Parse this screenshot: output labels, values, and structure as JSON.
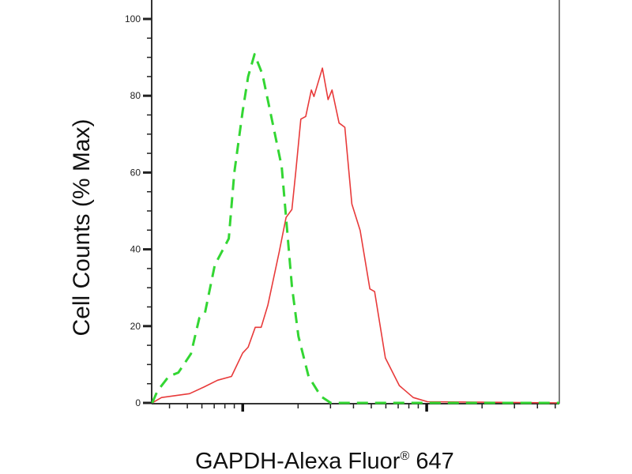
{
  "chart_data": {
    "type": "line",
    "title": "",
    "xlabel": "GAPDH-Alexa Fluor",
    "xlabel_superscript": "®",
    "xlabel_suffix": " 647",
    "ylabel": "Cell Counts (% Max)",
    "xscale": "log",
    "xlim": [
      0.32,
      52.6
    ],
    "ylim": [
      0,
      100
    ],
    "x_major_ticks": [
      1,
      10
    ],
    "x_minor_ticks": [
      0.4,
      0.5,
      0.6,
      0.7,
      0.8,
      0.9,
      2,
      3,
      4,
      5,
      6,
      7,
      8,
      9,
      20,
      30,
      40,
      50
    ],
    "x_tick_labels_shown": false,
    "y_ticks": [
      0,
      20,
      40,
      60,
      80,
      100
    ],
    "y_tick_labels": [
      "0",
      "20",
      "40",
      "60",
      "80",
      "100"
    ],
    "y_minor_step": 5,
    "grid": false,
    "legend": "none",
    "series": [
      {
        "color": "#e83a3a",
        "style": "solid",
        "x": [
          0.322,
          0.362,
          0.514,
          0.613,
          0.73,
          0.869,
          1.0,
          1.07,
          1.17,
          1.26,
          1.37,
          1.58,
          1.72,
          1.85,
          1.94,
          2.07,
          2.2,
          2.36,
          2.44,
          2.71,
          2.91,
          3.06,
          3.34,
          3.59,
          3.92,
          4.35,
          4.91,
          5.21,
          5.96,
          7.1,
          8.45,
          10.1,
          52.6
        ],
        "y": [
          0,
          1.4,
          2.4,
          4.1,
          5.9,
          6.9,
          13,
          14.5,
          19.7,
          19.7,
          25.5,
          39.4,
          48.3,
          50.4,
          60,
          73.9,
          74.6,
          81.5,
          79.8,
          87.2,
          79,
          81.5,
          72.9,
          71.8,
          51.8,
          44.9,
          29.7,
          29,
          11.7,
          4.5,
          1.4,
          0.3,
          0
        ]
      },
      {
        "color": "#33d633",
        "style": "dashed",
        "x": [
          0.322,
          0.344,
          0.396,
          0.447,
          0.523,
          0.581,
          0.624,
          0.705,
          0.84,
          0.9,
          1.0,
          1.07,
          1.16,
          1.28,
          1.47,
          1.63,
          1.72,
          1.85,
          2.01,
          2.28,
          2.66,
          3.01,
          52.6
        ],
        "y": [
          0,
          3.1,
          6.9,
          7.9,
          12.8,
          22.1,
          23.5,
          35.9,
          42.8,
          60,
          76,
          85,
          90.8,
          85.6,
          71.8,
          61.5,
          48.3,
          30.4,
          17.3,
          6.9,
          1.7,
          0,
          0
        ]
      }
    ]
  }
}
